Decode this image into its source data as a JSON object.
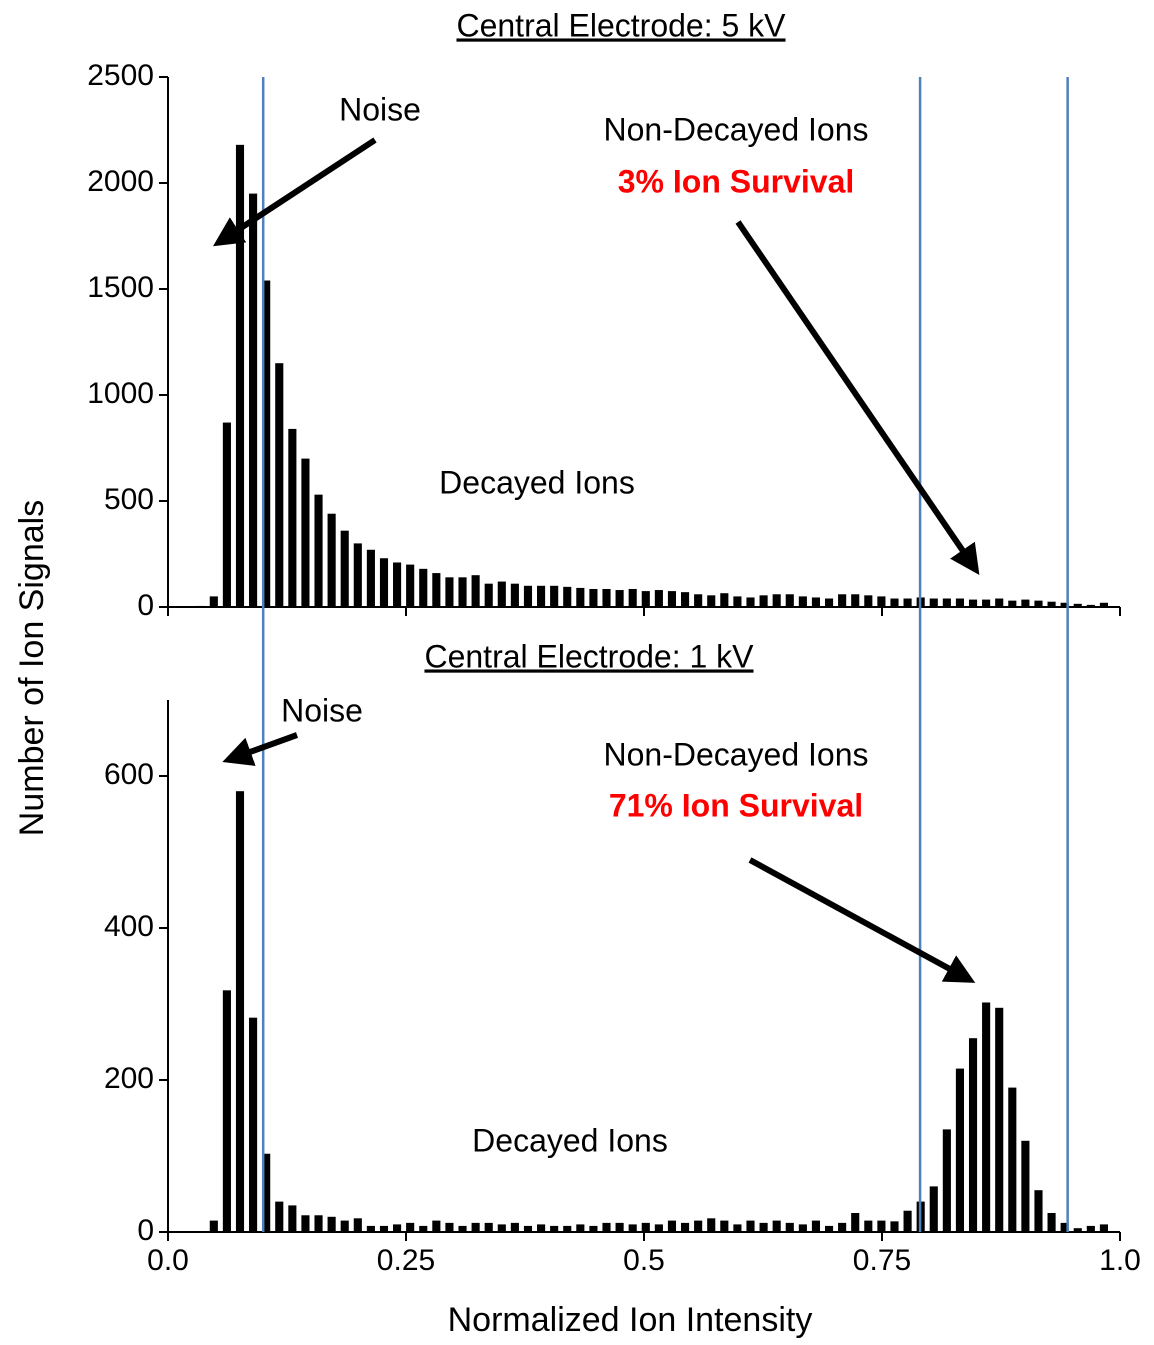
{
  "y_label": "Number of Ion Signals",
  "chart_data": [
    {
      "type": "histogram",
      "title": "Central Electrode: 5 kV",
      "bins": [
        0,
        0.01375,
        0.0275,
        0.04125,
        0.055,
        0.06875,
        0.0825,
        0.09625,
        0.11,
        0.12375,
        0.1375,
        0.15125,
        0.165,
        0.17875,
        0.1925,
        0.20625,
        0.22,
        0.23375,
        0.2475,
        0.26125,
        0.275,
        0.28875,
        0.3025,
        0.31625,
        0.33,
        0.34375,
        0.3575,
        0.37125,
        0.385,
        0.39875,
        0.4125,
        0.42625,
        0.44,
        0.45375,
        0.4675,
        0.48125,
        0.495,
        0.50875,
        0.5225,
        0.53625,
        0.55,
        0.56375,
        0.5775,
        0.59125,
        0.605,
        0.61875,
        0.6325,
        0.64625,
        0.66,
        0.67375,
        0.6875,
        0.70125,
        0.715,
        0.72875,
        0.7425,
        0.75625,
        0.77,
        0.78375,
        0.7975,
        0.81125,
        0.825,
        0.83875,
        0.8525,
        0.86625,
        0.88,
        0.89375,
        0.9075,
        0.92125,
        0.935,
        0.94875,
        0.9625,
        0.97625,
        0.99
      ],
      "values": [
        0,
        0,
        5,
        50,
        870,
        2180,
        1950,
        1540,
        1150,
        840,
        700,
        530,
        440,
        360,
        300,
        270,
        230,
        210,
        200,
        180,
        160,
        140,
        140,
        150,
        110,
        120,
        110,
        100,
        100,
        100,
        95,
        90,
        85,
        85,
        80,
        85,
        75,
        80,
        75,
        70,
        60,
        55,
        65,
        50,
        45,
        55,
        60,
        60,
        50,
        45,
        40,
        60,
        60,
        55,
        50,
        40,
        40,
        45,
        40,
        40,
        40,
        35,
        35,
        40,
        30,
        35,
        30,
        25,
        20,
        15,
        10,
        20
      ],
      "color": "#000000",
      "xlim": [
        0,
        1
      ],
      "xticks": [
        0,
        0.25,
        0.5,
        0.75,
        1
      ],
      "ylim": [
        0,
        2500
      ],
      "yticks": [
        0,
        500,
        1000,
        1500,
        2000,
        2500
      ],
      "vlines": [
        0.1,
        0.79,
        0.945
      ],
      "vline_color": "#4f81bd",
      "annotations": [
        {
          "text": "Noise",
          "color": "#000000"
        },
        {
          "text": "Non-Decayed Ions",
          "color": "#000000"
        },
        {
          "text": "3% Ion Survival",
          "color": "#ff0000",
          "bold": true
        },
        {
          "text": "Decayed Ions",
          "color": "#000000"
        }
      ]
    },
    {
      "type": "histogram",
      "title": "Central Electrode: 1 kV",
      "xlabel": "Normalized Ion Intensity",
      "bins": [
        0,
        0.01375,
        0.0275,
        0.04125,
        0.055,
        0.06875,
        0.0825,
        0.09625,
        0.11,
        0.12375,
        0.1375,
        0.15125,
        0.165,
        0.17875,
        0.1925,
        0.20625,
        0.22,
        0.23375,
        0.2475,
        0.26125,
        0.275,
        0.28875,
        0.3025,
        0.31625,
        0.33,
        0.34375,
        0.3575,
        0.37125,
        0.385,
        0.39875,
        0.4125,
        0.42625,
        0.44,
        0.45375,
        0.4675,
        0.48125,
        0.495,
        0.50875,
        0.5225,
        0.53625,
        0.55,
        0.56375,
        0.5775,
        0.59125,
        0.605,
        0.61875,
        0.6325,
        0.64625,
        0.66,
        0.67375,
        0.6875,
        0.70125,
        0.715,
        0.72875,
        0.7425,
        0.75625,
        0.77,
        0.78375,
        0.7975,
        0.81125,
        0.825,
        0.83875,
        0.8525,
        0.86625,
        0.88,
        0.89375,
        0.9075,
        0.92125,
        0.935,
        0.94875,
        0.9625,
        0.97625,
        0.99
      ],
      "values": [
        0,
        0,
        0,
        15,
        318,
        580,
        282,
        103,
        40,
        35,
        22,
        22,
        20,
        15,
        18,
        8,
        8,
        10,
        12,
        8,
        15,
        12,
        8,
        12,
        12,
        10,
        12,
        8,
        10,
        8,
        8,
        10,
        8,
        12,
        12,
        10,
        12,
        10,
        15,
        12,
        15,
        18,
        15,
        10,
        15,
        12,
        15,
        12,
        10,
        15,
        8,
        12,
        25,
        15,
        15,
        14,
        28,
        40,
        60,
        135,
        215,
        255,
        302,
        295,
        190,
        120,
        55,
        25,
        12,
        5,
        8,
        10
      ],
      "color": "#000000",
      "xlim": [
        0,
        1
      ],
      "xticks": [
        {
          "value": 0,
          "label": "0.0"
        },
        0.25,
        0.5,
        0.75,
        {
          "value": 1,
          "label": "1.0"
        }
      ],
      "ylim": [
        0,
        700
      ],
      "yticks": [
        0,
        200,
        400,
        600
      ],
      "vlines": [
        0.1,
        0.79,
        0.945
      ],
      "vline_color": "#4f81bd",
      "annotations": [
        {
          "text": "Noise",
          "color": "#000000"
        },
        {
          "text": "Non-Decayed Ions",
          "color": "#000000"
        },
        {
          "text": "71% Ion Survival",
          "color": "#ff0000",
          "bold": true
        },
        {
          "text": "Decayed Ions",
          "color": "#000000"
        }
      ]
    }
  ]
}
